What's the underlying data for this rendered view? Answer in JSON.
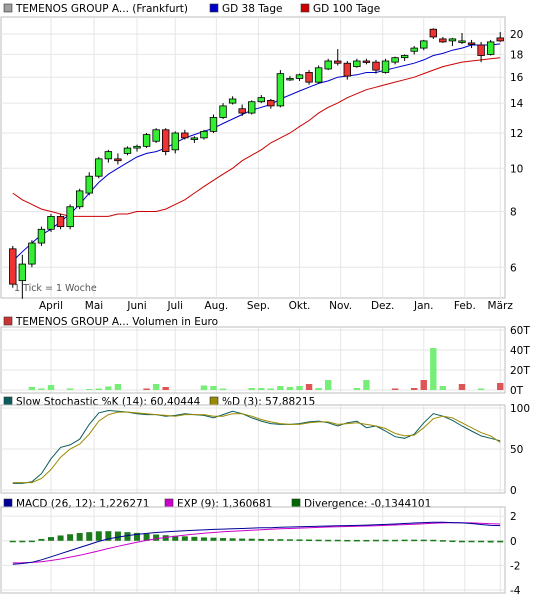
{
  "chart_data": [
    {
      "type": "candlestick",
      "legend": [
        {
          "label": "TEMENOS GROUP A... (Frankfurt)",
          "color": "#9e9e9e"
        },
        {
          "label": "GD 38 Tage",
          "color": "#0000cc"
        },
        {
          "label": "GD 100 Tage",
          "color": "#cc0000"
        }
      ],
      "note": "1 Tick = 1 Woche",
      "y_scale": "log",
      "ylim": [
        5.2,
        21.5
      ],
      "yticks": [
        6,
        8,
        10,
        12,
        14,
        16,
        18,
        20
      ],
      "x_labels": [
        "April",
        "Mai",
        "Juni",
        "Juli",
        "Aug.",
        "Sep.",
        "Okt.",
        "Nov.",
        "Dez.",
        "Jan.",
        "Feb.",
        "März"
      ],
      "colors": {
        "up": "#33ee33",
        "down": "#ee3333",
        "gd38": "#0000cc",
        "gd100": "#cc0000"
      },
      "ohlc": [
        [
          6.6,
          6.7,
          5.4,
          5.5
        ],
        [
          5.6,
          6.4,
          5.1,
          6.1
        ],
        [
          6.1,
          6.9,
          6.0,
          6.8
        ],
        [
          6.8,
          7.4,
          6.7,
          7.3
        ],
        [
          7.3,
          7.9,
          7.2,
          7.8
        ],
        [
          7.8,
          7.9,
          7.3,
          7.4
        ],
        [
          7.4,
          8.3,
          7.3,
          8.2
        ],
        [
          8.2,
          9.0,
          8.1,
          8.9
        ],
        [
          8.8,
          9.8,
          8.7,
          9.6
        ],
        [
          9.6,
          10.6,
          9.5,
          10.5
        ],
        [
          10.5,
          11.0,
          10.3,
          10.9
        ],
        [
          10.5,
          10.8,
          10.2,
          10.4
        ],
        [
          10.8,
          11.2,
          10.7,
          11.1
        ],
        [
          11.1,
          11.3,
          10.9,
          11.2
        ],
        [
          11.2,
          12.0,
          11.1,
          11.9
        ],
        [
          11.5,
          12.3,
          11.4,
          12.2
        ],
        [
          12.2,
          12.3,
          10.7,
          10.9
        ],
        [
          11.0,
          12.1,
          10.8,
          12.0
        ],
        [
          12.0,
          12.2,
          11.6,
          11.7
        ],
        [
          11.6,
          11.8,
          11.4,
          11.7
        ],
        [
          11.7,
          12.2,
          11.6,
          12.1
        ],
        [
          12.1,
          13.2,
          12.0,
          13.0
        ],
        [
          13.0,
          14.0,
          12.9,
          13.8
        ],
        [
          14.0,
          14.5,
          13.9,
          14.3
        ],
        [
          13.6,
          13.9,
          13.1,
          13.3
        ],
        [
          13.3,
          14.2,
          13.2,
          14.1
        ],
        [
          14.1,
          14.6,
          14.0,
          14.4
        ],
        [
          14.2,
          14.3,
          13.6,
          13.8
        ],
        [
          13.8,
          16.6,
          13.7,
          16.3
        ],
        [
          15.8,
          16.1,
          15.7,
          15.9
        ],
        [
          15.9,
          16.3,
          15.7,
          16.2
        ],
        [
          16.4,
          16.6,
          15.4,
          15.6
        ],
        [
          15.6,
          17.0,
          15.5,
          16.8
        ],
        [
          16.7,
          17.6,
          16.6,
          17.4
        ],
        [
          17.4,
          18.5,
          17.0,
          17.2
        ],
        [
          17.2,
          17.4,
          15.8,
          16.1
        ],
        [
          16.9,
          17.6,
          16.8,
          17.4
        ],
        [
          17.4,
          17.6,
          17.1,
          17.3
        ],
        [
          17.3,
          17.5,
          16.3,
          16.6
        ],
        [
          16.4,
          17.6,
          16.3,
          17.4
        ],
        [
          17.3,
          17.8,
          17.1,
          17.7
        ],
        [
          17.7,
          18.0,
          17.4,
          17.9
        ],
        [
          18.3,
          18.8,
          18.0,
          18.6
        ],
        [
          18.6,
          19.4,
          18.4,
          19.3
        ],
        [
          20.5,
          20.6,
          19.5,
          19.7
        ],
        [
          19.5,
          19.7,
          19.1,
          19.2
        ],
        [
          19.3,
          19.6,
          18.8,
          19.5
        ],
        [
          19.2,
          20.1,
          19.0,
          19.3
        ],
        [
          19.1,
          19.4,
          18.6,
          19.0
        ],
        [
          18.9,
          19.2,
          17.3,
          17.9
        ],
        [
          18.0,
          19.4,
          17.9,
          19.2
        ],
        [
          19.6,
          20.2,
          19.2,
          19.3
        ]
      ],
      "gd38": [
        6.2,
        6.5,
        6.8,
        7.1,
        7.3,
        7.6,
        7.9,
        8.3,
        8.8,
        9.3,
        9.7,
        10.0,
        10.3,
        10.6,
        10.8,
        10.9,
        11.1,
        11.4,
        11.7,
        11.9,
        12.1,
        12.3,
        12.6,
        12.9,
        13.2,
        13.5,
        13.7,
        13.9,
        14.3,
        14.6,
        14.9,
        15.2,
        15.5,
        15.7,
        16.0,
        16.1,
        16.2,
        16.4,
        16.4,
        16.6,
        16.8,
        17.0,
        17.2,
        17.5,
        17.9,
        18.1,
        18.4,
        18.6,
        18.9,
        18.9,
        18.9,
        19.0
      ],
      "gd100": [
        8.8,
        8.5,
        8.3,
        8.1,
        8.0,
        7.9,
        7.8,
        7.8,
        7.8,
        7.8,
        7.8,
        7.9,
        7.9,
        8.0,
        8.0,
        8.0,
        8.1,
        8.3,
        8.5,
        8.8,
        9.1,
        9.4,
        9.7,
        10.0,
        10.4,
        10.7,
        11.0,
        11.4,
        11.7,
        12.0,
        12.4,
        12.8,
        13.3,
        13.7,
        14.0,
        14.4,
        14.7,
        15.0,
        15.2,
        15.4,
        15.6,
        15.8,
        16.0,
        16.3,
        16.6,
        16.9,
        17.1,
        17.3,
        17.4,
        17.5,
        17.6,
        17.7
      ]
    },
    {
      "type": "bar",
      "legend": [
        {
          "label": "TEMENOS GROUP A... Volumen in Euro",
          "color": "#cc3333"
        }
      ],
      "ylim": [
        0,
        60000
      ],
      "ytick_labels": [
        "60T",
        "40T",
        "20T",
        "0T"
      ],
      "yticks": [
        60000,
        40000,
        20000,
        0
      ],
      "volumes": [
        0,
        0,
        3000,
        1500,
        5000,
        0,
        1500,
        0,
        1000,
        1500,
        3500,
        6000,
        0,
        0,
        1500,
        6000,
        3000,
        0,
        0,
        0,
        4500,
        4000,
        1500,
        0,
        0,
        2000,
        2000,
        1500,
        4000,
        3000,
        4000,
        6000,
        2000,
        10000,
        0,
        0,
        2000,
        10000,
        0,
        0,
        1500,
        0,
        2000,
        10000,
        42000,
        4000,
        0,
        6000,
        0,
        1500,
        0,
        7000
      ],
      "volume_up": [
        false,
        false,
        true,
        true,
        true,
        false,
        true,
        false,
        true,
        true,
        true,
        true,
        false,
        false,
        false,
        true,
        false,
        false,
        false,
        false,
        true,
        true,
        true,
        false,
        false,
        true,
        true,
        true,
        true,
        true,
        true,
        false,
        true,
        true,
        false,
        false,
        true,
        true,
        false,
        false,
        false,
        false,
        false,
        false,
        true,
        true,
        false,
        false,
        false,
        true,
        false,
        false
      ]
    },
    {
      "type": "line",
      "legend": [
        {
          "label": "Slow Stochastic %K (14): 60,40444",
          "color": "#0b5c5c"
        },
        {
          "label": "%D (3): 57,88215",
          "color": "#9a8a00"
        }
      ],
      "ylim": [
        0,
        100
      ],
      "yticks": [
        100,
        50,
        0
      ],
      "series": [
        {
          "name": "Slow Stochastic %K (14): 60,40444",
          "color": "#0b5c5c",
          "values": [
            8,
            8,
            10,
            20,
            38,
            52,
            55,
            62,
            80,
            94,
            97,
            96,
            95,
            93,
            92,
            92,
            90,
            91,
            93,
            92,
            91,
            88,
            92,
            96,
            93,
            88,
            84,
            81,
            80,
            80,
            81,
            83,
            84,
            82,
            78,
            82,
            84,
            76,
            78,
            72,
            65,
            63,
            68,
            82,
            93,
            90,
            85,
            78,
            72,
            66,
            63,
            60
          ]
        },
        {
          "name": "%D (3): 57,88215",
          "color": "#9a8a00",
          "values": [
            9,
            9,
            9,
            14,
            25,
            40,
            50,
            56,
            68,
            84,
            92,
            95,
            95,
            94,
            93,
            92,
            91,
            90,
            92,
            92,
            92,
            90,
            90,
            93,
            93,
            90,
            86,
            83,
            81,
            80,
            80,
            82,
            83,
            83,
            80,
            81,
            82,
            80,
            78,
            75,
            69,
            66,
            67,
            76,
            87,
            90,
            88,
            82,
            76,
            70,
            66,
            58
          ]
        }
      ]
    },
    {
      "type": "line",
      "legend": [
        {
          "label": "MACD (26, 12): 1,226271",
          "color": "#000099"
        },
        {
          "label": "EXP (9): 1,360681",
          "color": "#cc00cc"
        },
        {
          "label": "Divergence: -0,1344101",
          "color": "#006600"
        }
      ],
      "ylim": [
        -4,
        2.5
      ],
      "yticks": [
        2,
        0,
        -2,
        -4
      ],
      "macd": [
        -1.9,
        -1.85,
        -1.75,
        -1.55,
        -1.3,
        -1.05,
        -0.8,
        -0.55,
        -0.3,
        -0.05,
        0.15,
        0.3,
        0.42,
        0.52,
        0.6,
        0.67,
        0.72,
        0.77,
        0.82,
        0.86,
        0.88,
        0.92,
        0.95,
        0.98,
        1.0,
        1.03,
        1.05,
        1.06,
        1.1,
        1.12,
        1.14,
        1.16,
        1.18,
        1.2,
        1.22,
        1.23,
        1.25,
        1.27,
        1.3,
        1.33,
        1.36,
        1.4,
        1.44,
        1.48,
        1.5,
        1.5,
        1.48,
        1.45,
        1.4,
        1.32,
        1.25,
        1.23
      ],
      "exp": [
        -1.8,
        -1.79,
        -1.76,
        -1.7,
        -1.6,
        -1.48,
        -1.33,
        -1.18,
        -1.0,
        -0.82,
        -0.63,
        -0.45,
        -0.28,
        -0.12,
        0.03,
        0.16,
        0.27,
        0.37,
        0.46,
        0.54,
        0.61,
        0.67,
        0.73,
        0.78,
        0.82,
        0.86,
        0.9,
        0.93,
        0.97,
        1.0,
        1.03,
        1.06,
        1.09,
        1.12,
        1.14,
        1.16,
        1.18,
        1.2,
        1.22,
        1.25,
        1.28,
        1.31,
        1.35,
        1.39,
        1.42,
        1.45,
        1.46,
        1.46,
        1.45,
        1.42,
        1.39,
        1.36
      ],
      "divergence": [
        -0.1,
        -0.06,
        0.01,
        0.15,
        0.3,
        0.43,
        0.53,
        0.63,
        0.7,
        0.77,
        0.78,
        0.75,
        0.7,
        0.64,
        0.57,
        0.51,
        0.45,
        0.4,
        0.36,
        0.32,
        0.27,
        0.25,
        0.22,
        0.2,
        0.18,
        0.17,
        0.15,
        0.13,
        0.13,
        0.12,
        0.11,
        0.1,
        0.09,
        0.08,
        0.08,
        0.07,
        0.07,
        0.07,
        0.08,
        0.08,
        0.08,
        0.09,
        0.09,
        0.09,
        0.08,
        0.05,
        0.02,
        -0.01,
        -0.05,
        -0.1,
        -0.14,
        -0.13
      ]
    }
  ]
}
